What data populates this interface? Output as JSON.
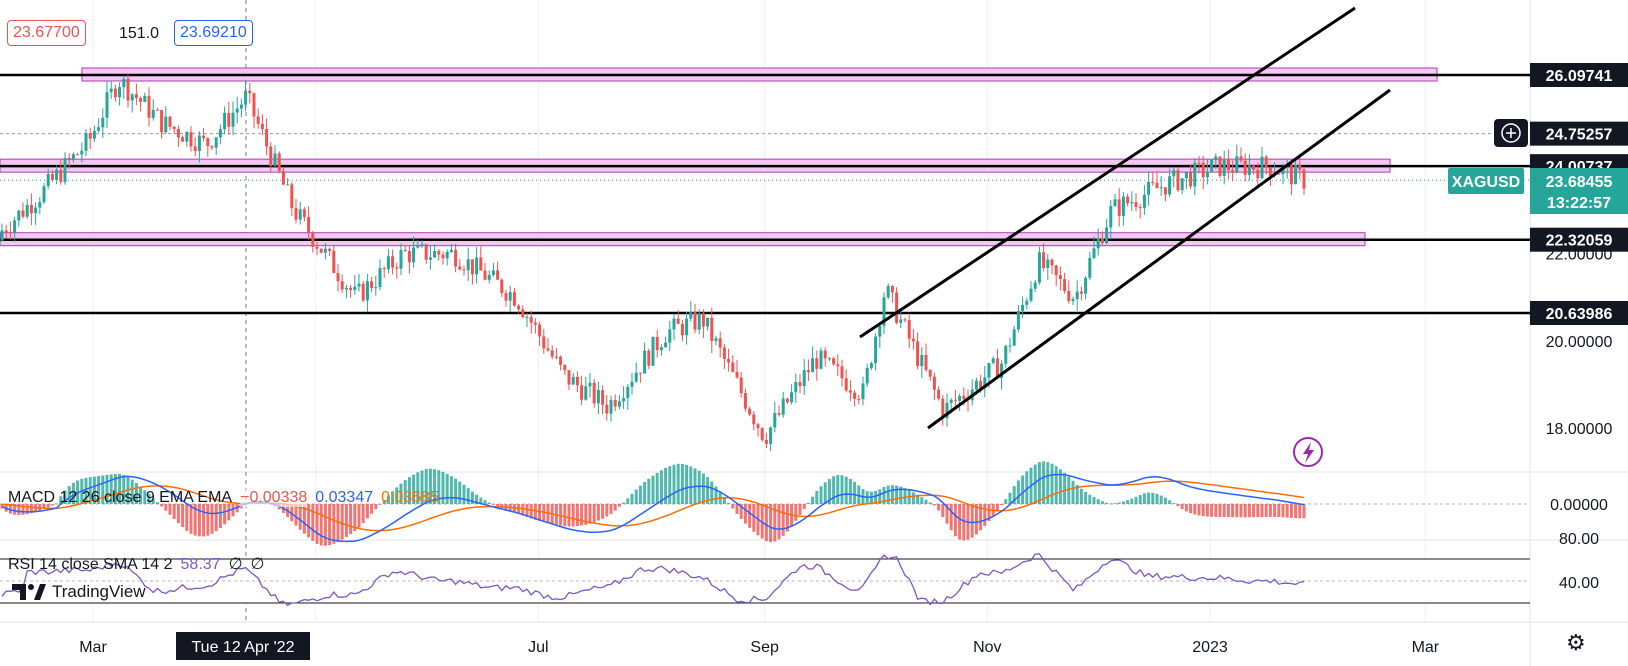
{
  "header": {
    "price_box_red": "23.67700",
    "volume_value": "151.0",
    "price_box_blue": "23.69210"
  },
  "symbol": {
    "ticker": "XAGUSD",
    "last_price": "23.68455",
    "countdown": "13:22:57"
  },
  "macd": {
    "label": "MACD 12 26 close 9 EMA EMA",
    "histogram_value": "−0.00338",
    "macd_value": "0.03347",
    "signal_value": "0.03685"
  },
  "rsi": {
    "label": "RSI 14 close SMA 14 2",
    "value": "58.37",
    "extra1": "∅",
    "extra2": "∅"
  },
  "crosshair": {
    "date_label": "Tue 12 Apr '22"
  },
  "branding": {
    "name": "TradingView"
  },
  "colors": {
    "up": "#26a69a",
    "down": "#ef5350",
    "zone_fill": "#f3c9f3",
    "zone_border": "#b23ab2",
    "macd_line": "#2962ff",
    "signal_line": "#ff6d00",
    "rsi_line": "#7e57c2",
    "symbol_tag": "#26a69a"
  },
  "icons": {
    "crosshair_add": "plus-circle-icon",
    "alert": "lightning-circle-icon",
    "settings": "gear-icon",
    "logo": "tradingview-logo-icon"
  },
  "chart_data": {
    "type": "candlestick",
    "symbol": "XAGUSD",
    "x_ticks": [
      "Mar",
      "Jul",
      "Sep",
      "Nov",
      "2023",
      "Mar"
    ],
    "y_ticks": [
      "26.09741",
      "24.75257",
      "24.00737",
      "22.32059",
      "22.00000",
      "20.63986",
      "20.00000",
      "18.00000"
    ],
    "price_range": [
      17.6,
      26.6
    ],
    "horizontal_levels": [
      26.09741,
      24.00737,
      22.32059,
      20.63986
    ],
    "dashed_level": 24.75257,
    "current_price": 23.68455,
    "price_path": [
      {
        "date": "2022-02-01",
        "price": 22.3
      },
      {
        "date": "2022-02-15",
        "price": 23.4
      },
      {
        "date": "2022-02-28",
        "price": 24.6
      },
      {
        "date": "2022-03-08",
        "price": 26.0
      },
      {
        "date": "2022-03-20",
        "price": 25.0
      },
      {
        "date": "2022-04-01",
        "price": 24.5
      },
      {
        "date": "2022-04-12",
        "price": 25.6
      },
      {
        "date": "2022-04-25",
        "price": 23.0
      },
      {
        "date": "2022-05-12",
        "price": 21.0
      },
      {
        "date": "2022-05-25",
        "price": 22.0
      },
      {
        "date": "2022-06-08",
        "price": 22.0
      },
      {
        "date": "2022-06-25",
        "price": 21.0
      },
      {
        "date": "2022-07-08",
        "price": 19.2
      },
      {
        "date": "2022-07-20",
        "price": 18.5
      },
      {
        "date": "2022-08-05",
        "price": 20.2
      },
      {
        "date": "2022-08-15",
        "price": 20.5
      },
      {
        "date": "2022-09-01",
        "price": 17.8
      },
      {
        "date": "2022-09-15",
        "price": 19.6
      },
      {
        "date": "2022-09-28",
        "price": 18.8
      },
      {
        "date": "2022-10-04",
        "price": 21.2
      },
      {
        "date": "2022-10-20",
        "price": 18.4
      },
      {
        "date": "2022-11-05",
        "price": 19.5
      },
      {
        "date": "2022-11-15",
        "price": 21.8
      },
      {
        "date": "2022-11-25",
        "price": 21.0
      },
      {
        "date": "2022-12-05",
        "price": 23.0
      },
      {
        "date": "2022-12-20",
        "price": 23.6
      },
      {
        "date": "2023-01-03",
        "price": 24.0
      },
      {
        "date": "2023-01-18",
        "price": 24.0
      },
      {
        "date": "2023-01-27",
        "price": 23.68
      }
    ],
    "macd": {
      "y_ticks": [
        "0.00000"
      ],
      "macd": 0.03347,
      "signal": 0.03685,
      "histogram": -0.00338
    },
    "rsi": {
      "y_ticks": [
        "80.00",
        "40.00"
      ],
      "value": 58.37
    }
  }
}
